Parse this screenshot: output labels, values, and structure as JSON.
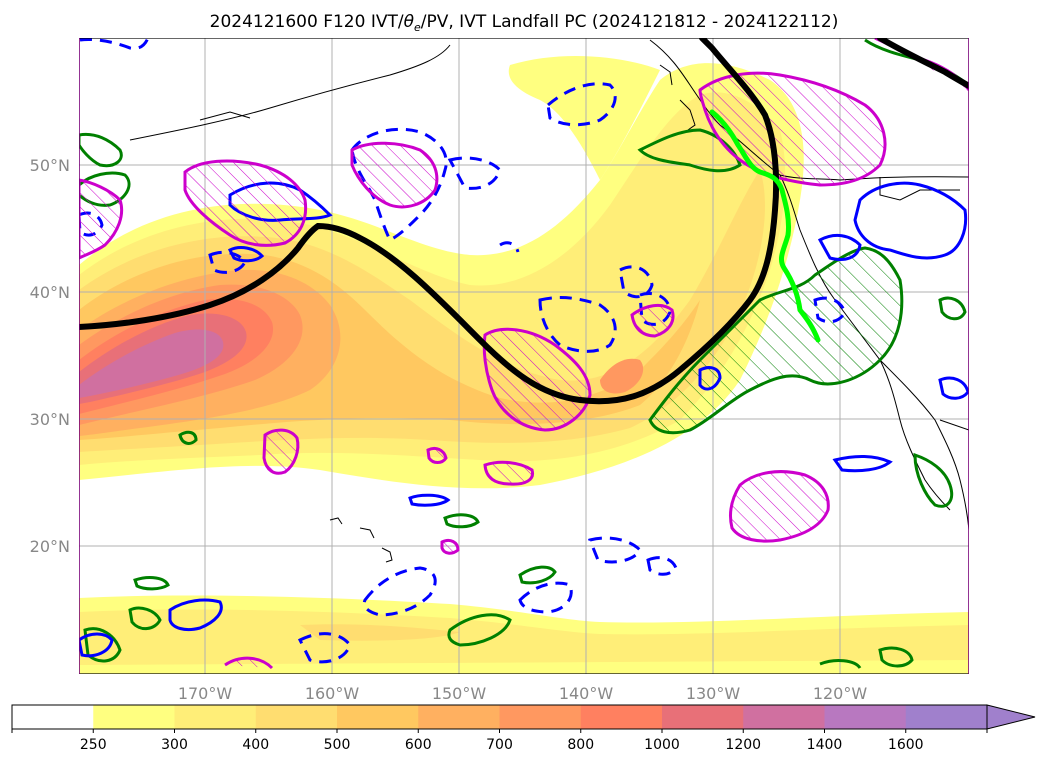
{
  "title": "2024121600 F120 IVT/θe/PV, IVT Landfall PC (2024121812 - 2024122112)",
  "title_parts": {
    "prefix": "2024121600 F120 IVT/",
    "theta": "θ",
    "sub": "e",
    "suffix": "/PV, IVT Landfall PC (2024121812 - 2024122112)"
  },
  "map": {
    "lat_labels": [
      "50°N",
      "40°N",
      "30°N",
      "20°N"
    ],
    "lon_labels": [
      "170°W",
      "160°W",
      "150°W",
      "140°W",
      "130°W",
      "120°W"
    ],
    "gridlines": true
  },
  "layers": {
    "ivt_fill": "IVT shading",
    "theta_e_contours": [
      "green",
      "blue solid",
      "blue dashed"
    ],
    "pv_contours": "magenta hatched",
    "landfall_pc": "black thick line",
    "landfall_point": "bright green line"
  },
  "colorbar": {
    "ticks": [
      "250",
      "300",
      "400",
      "500",
      "600",
      "700",
      "800",
      "1000",
      "1200",
      "1400",
      "1600"
    ],
    "colors": [
      "#ffffff",
      "#ffff80",
      "#ffee78",
      "#ffdd70",
      "#ffc860",
      "#ffb060",
      "#ff9860",
      "#ff8060",
      "#e87078",
      "#d070a0",
      "#b878c0",
      "#a080cc"
    ],
    "extend": "max"
  },
  "colors": {
    "pc_line": "#000000",
    "landfall": "#00ff00",
    "green_contour": "#008000",
    "blue_contour": "#0000ff",
    "magenta_contour": "#cc00cc"
  }
}
